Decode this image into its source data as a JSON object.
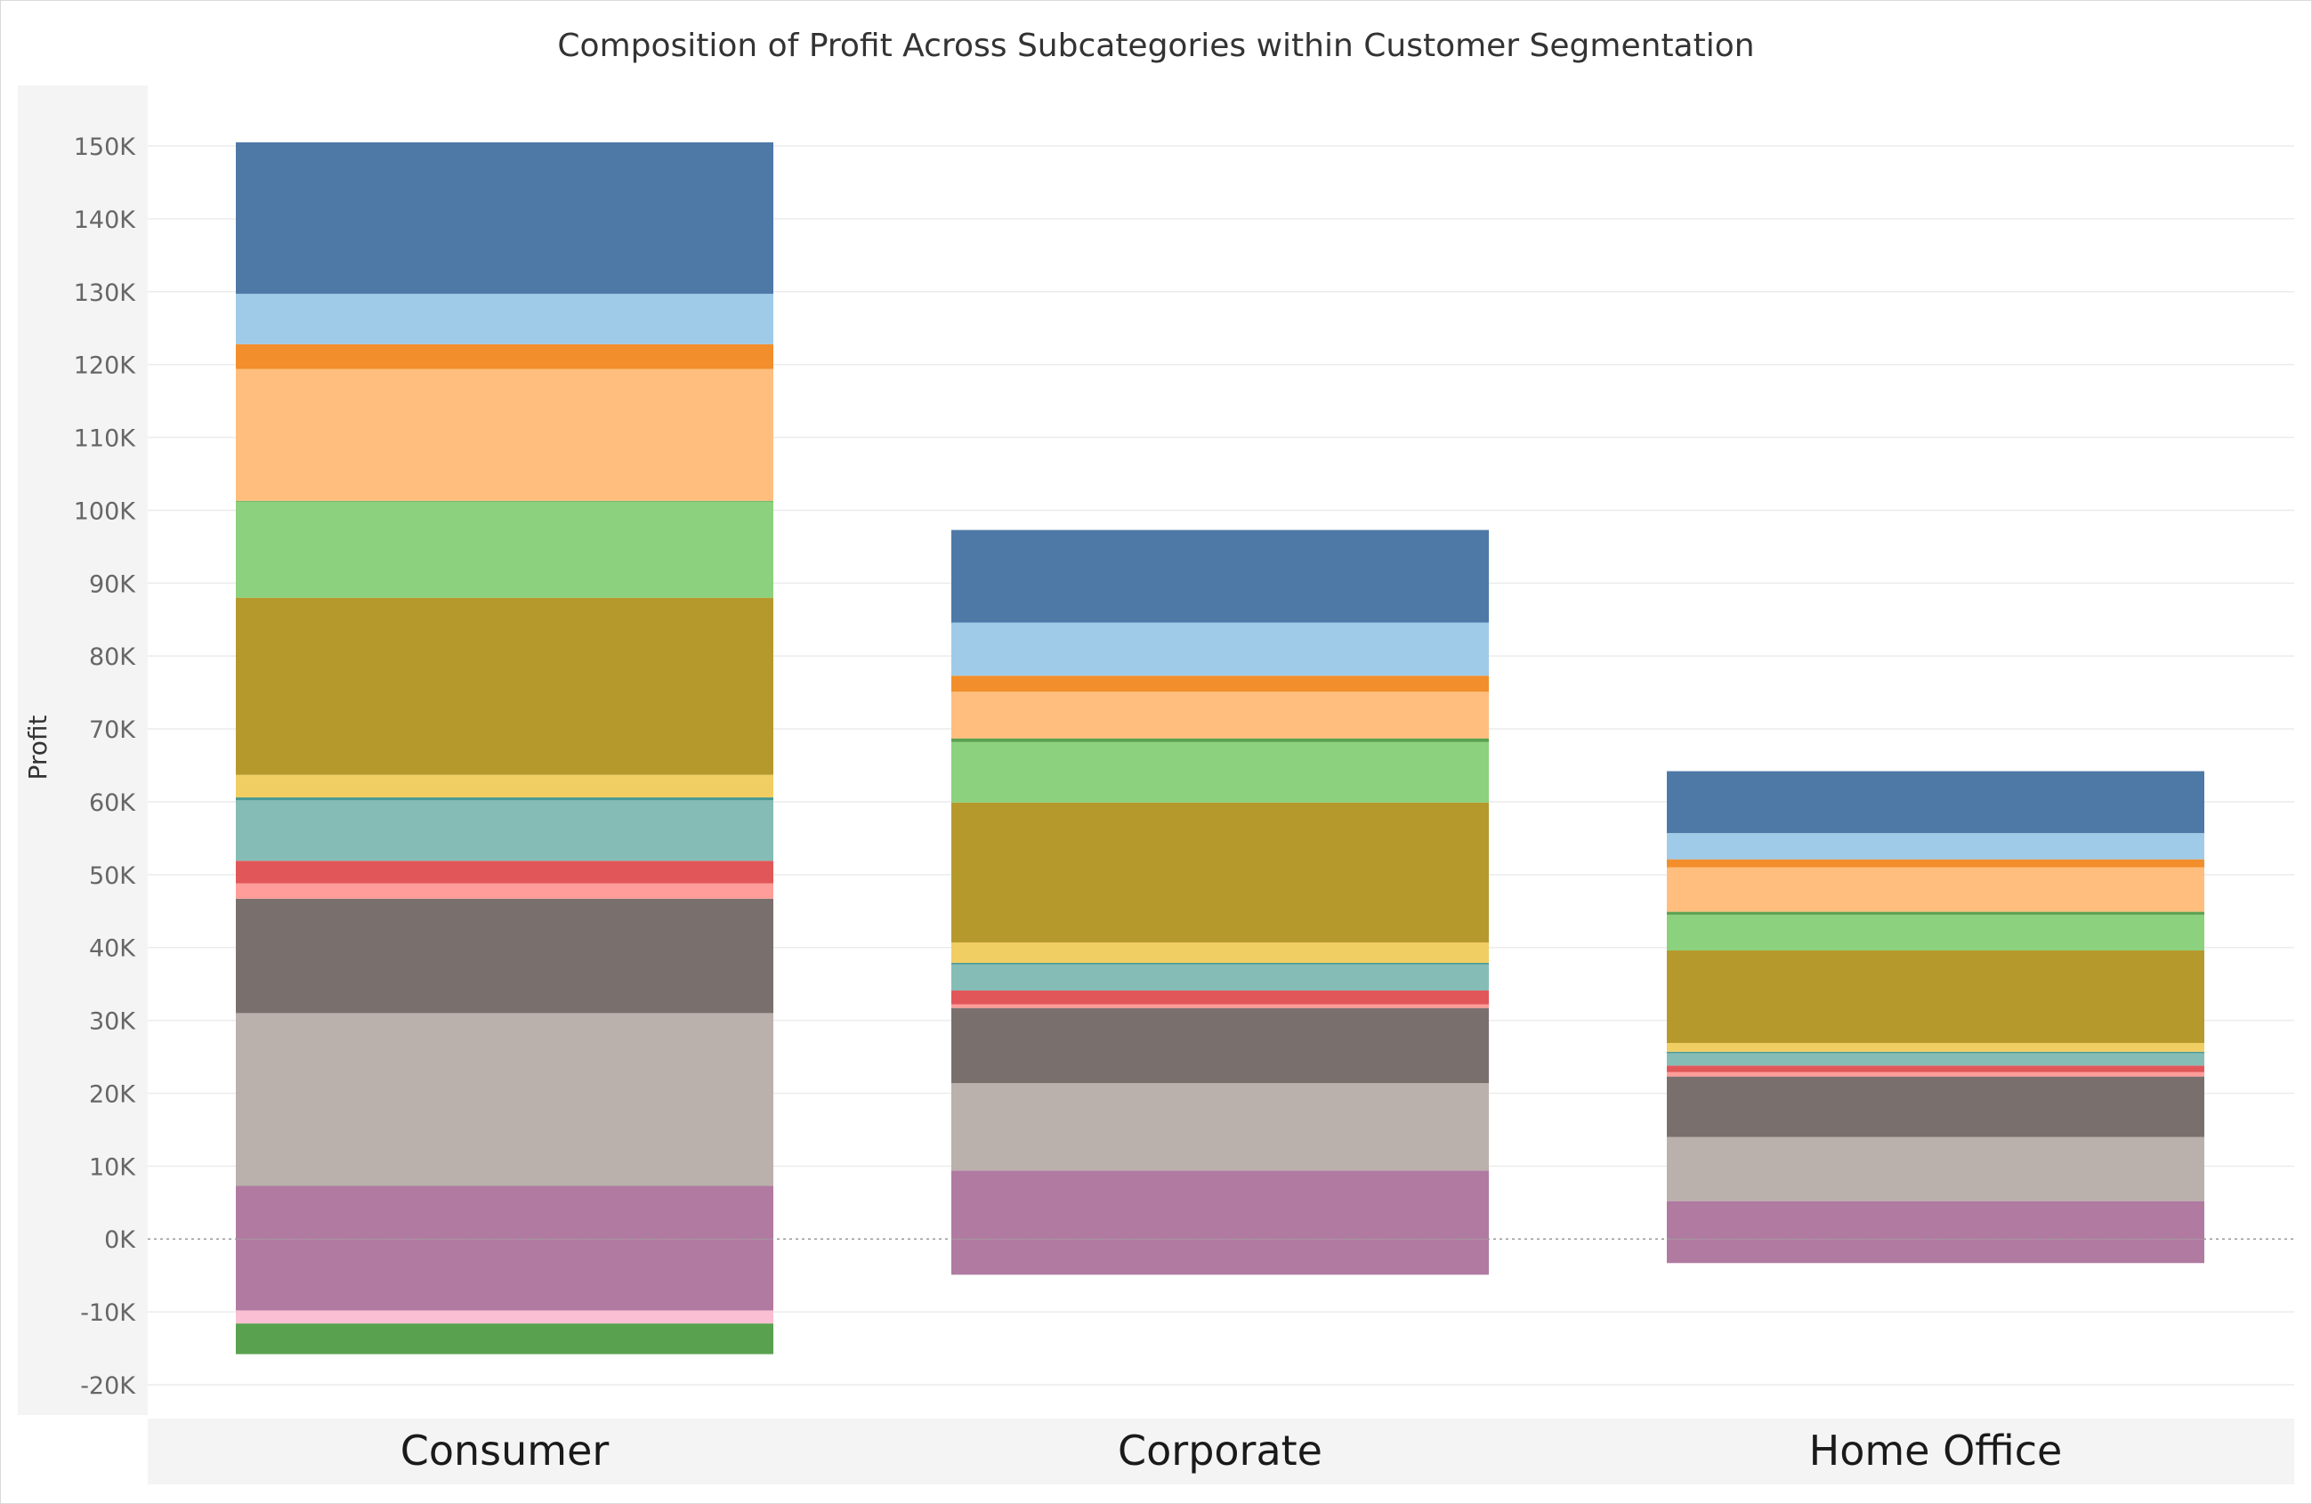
{
  "chart_data": {
    "type": "bar",
    "stacked": true,
    "title": "Composition of Profit Across Subcategories within Customer Segmentation",
    "xlabel": "",
    "ylabel": "Profit",
    "ylim": [
      -20000,
      150000
    ],
    "y_ticks": [
      -20000,
      -10000,
      0,
      10000,
      20000,
      30000,
      40000,
      50000,
      60000,
      70000,
      80000,
      90000,
      100000,
      110000,
      120000,
      130000,
      140000,
      150000
    ],
    "y_tick_labels": [
      "-20K",
      "-10K",
      "0K",
      "10K",
      "20K",
      "30K",
      "40K",
      "50K",
      "60K",
      "70K",
      "80K",
      "90K",
      "100K",
      "110K",
      "120K",
      "130K",
      "140K",
      "150K"
    ],
    "grid": true,
    "zero_line": "dotted",
    "legend": "none",
    "categories": [
      "Consumer",
      "Corporate",
      "Home Office"
    ],
    "series": [
      {
        "color": "#b07aa1",
        "values": [
          7300,
          9400,
          5200
        ]
      },
      {
        "color": "#bab0ac",
        "values": [
          23700,
          12000,
          8800
        ]
      },
      {
        "color": "#79706e",
        "values": [
          15700,
          10300,
          8300
        ]
      },
      {
        "color": "#ff9d9a",
        "values": [
          2100,
          500,
          600
        ]
      },
      {
        "color": "#e15759",
        "values": [
          3100,
          1900,
          900
        ]
      },
      {
        "color": "#86bcb6",
        "values": [
          8300,
          3600,
          1700
        ]
      },
      {
        "color": "#499894",
        "values": [
          400,
          200,
          200
        ]
      },
      {
        "color": "#f1ce63",
        "values": [
          3100,
          2800,
          1200
        ]
      },
      {
        "color": "#b6992d",
        "values": [
          24300,
          19200,
          12700
        ]
      },
      {
        "color": "#8cd17d",
        "values": [
          13200,
          8300,
          4900
        ]
      },
      {
        "color": "#59a14f",
        "values": [
          100,
          500,
          400
        ]
      },
      {
        "color": "#ffbe7d",
        "values": [
          18100,
          6400,
          6100
        ]
      },
      {
        "color": "#f28e2b",
        "values": [
          3400,
          2200,
          1100
        ]
      },
      {
        "color": "#a0cbe8",
        "values": [
          6900,
          7300,
          3600
        ]
      },
      {
        "color": "#4e79a7",
        "values": [
          20800,
          12700,
          8500
        ]
      },
      {
        "color": "#b07aa1",
        "values": [
          -9800,
          -4900,
          -3300
        ]
      },
      {
        "color": "#fabfd2",
        "values": [
          -1800,
          0,
          0
        ]
      },
      {
        "color": "#59a14f",
        "values": [
          -4200,
          0,
          0
        ]
      }
    ]
  }
}
